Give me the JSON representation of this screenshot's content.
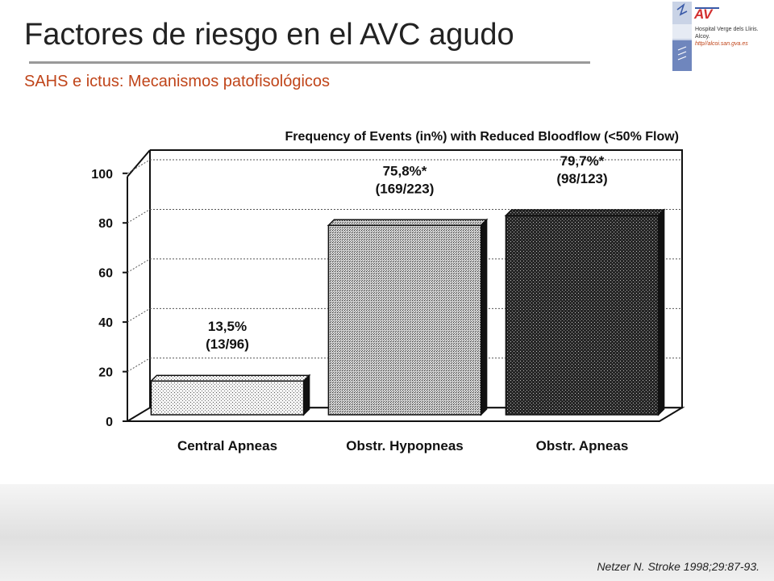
{
  "slide": {
    "title": "Factores de riesgo en el AVC agudo",
    "subtitle": "SAHS e ictus: Mecanismos patofisológicos",
    "citation": "Netzer N. Stroke 1998;29:87-93.",
    "logo_text": "AV",
    "hospital_line1": "Hospital Verge dels Lliris.",
    "hospital_line2": "Alcoy.",
    "hospital_url": "http//alcoi.san.gva.es"
  },
  "colors": {
    "title": "#222222",
    "subtitle": "#c0451a",
    "rule": "#9a9a9a",
    "logo_red": "#d32f2f",
    "logo_blue": "#3a5aa8"
  },
  "chart_data": {
    "type": "bar",
    "title": "Frequency of Events (in%) with Reduced Bloodflow (<50% Flow)",
    "categories": [
      "Central Apneas",
      "Obstr. Hypopneas",
      "Obstr. Apneas"
    ],
    "values": [
      13.5,
      75.8,
      79.7
    ],
    "value_labels": [
      "13,5%",
      "75,8%*",
      "79,7%*"
    ],
    "count_labels": [
      "(13/96)",
      "(169/223)",
      "(98/123)"
    ],
    "ylim": [
      0,
      100
    ],
    "yticks": [
      0,
      20,
      40,
      60,
      80,
      100
    ],
    "grid": true,
    "bar_fills": [
      "light-stipple",
      "medium-stipple",
      "dark-stipple"
    ],
    "xlabel": "",
    "ylabel": ""
  }
}
